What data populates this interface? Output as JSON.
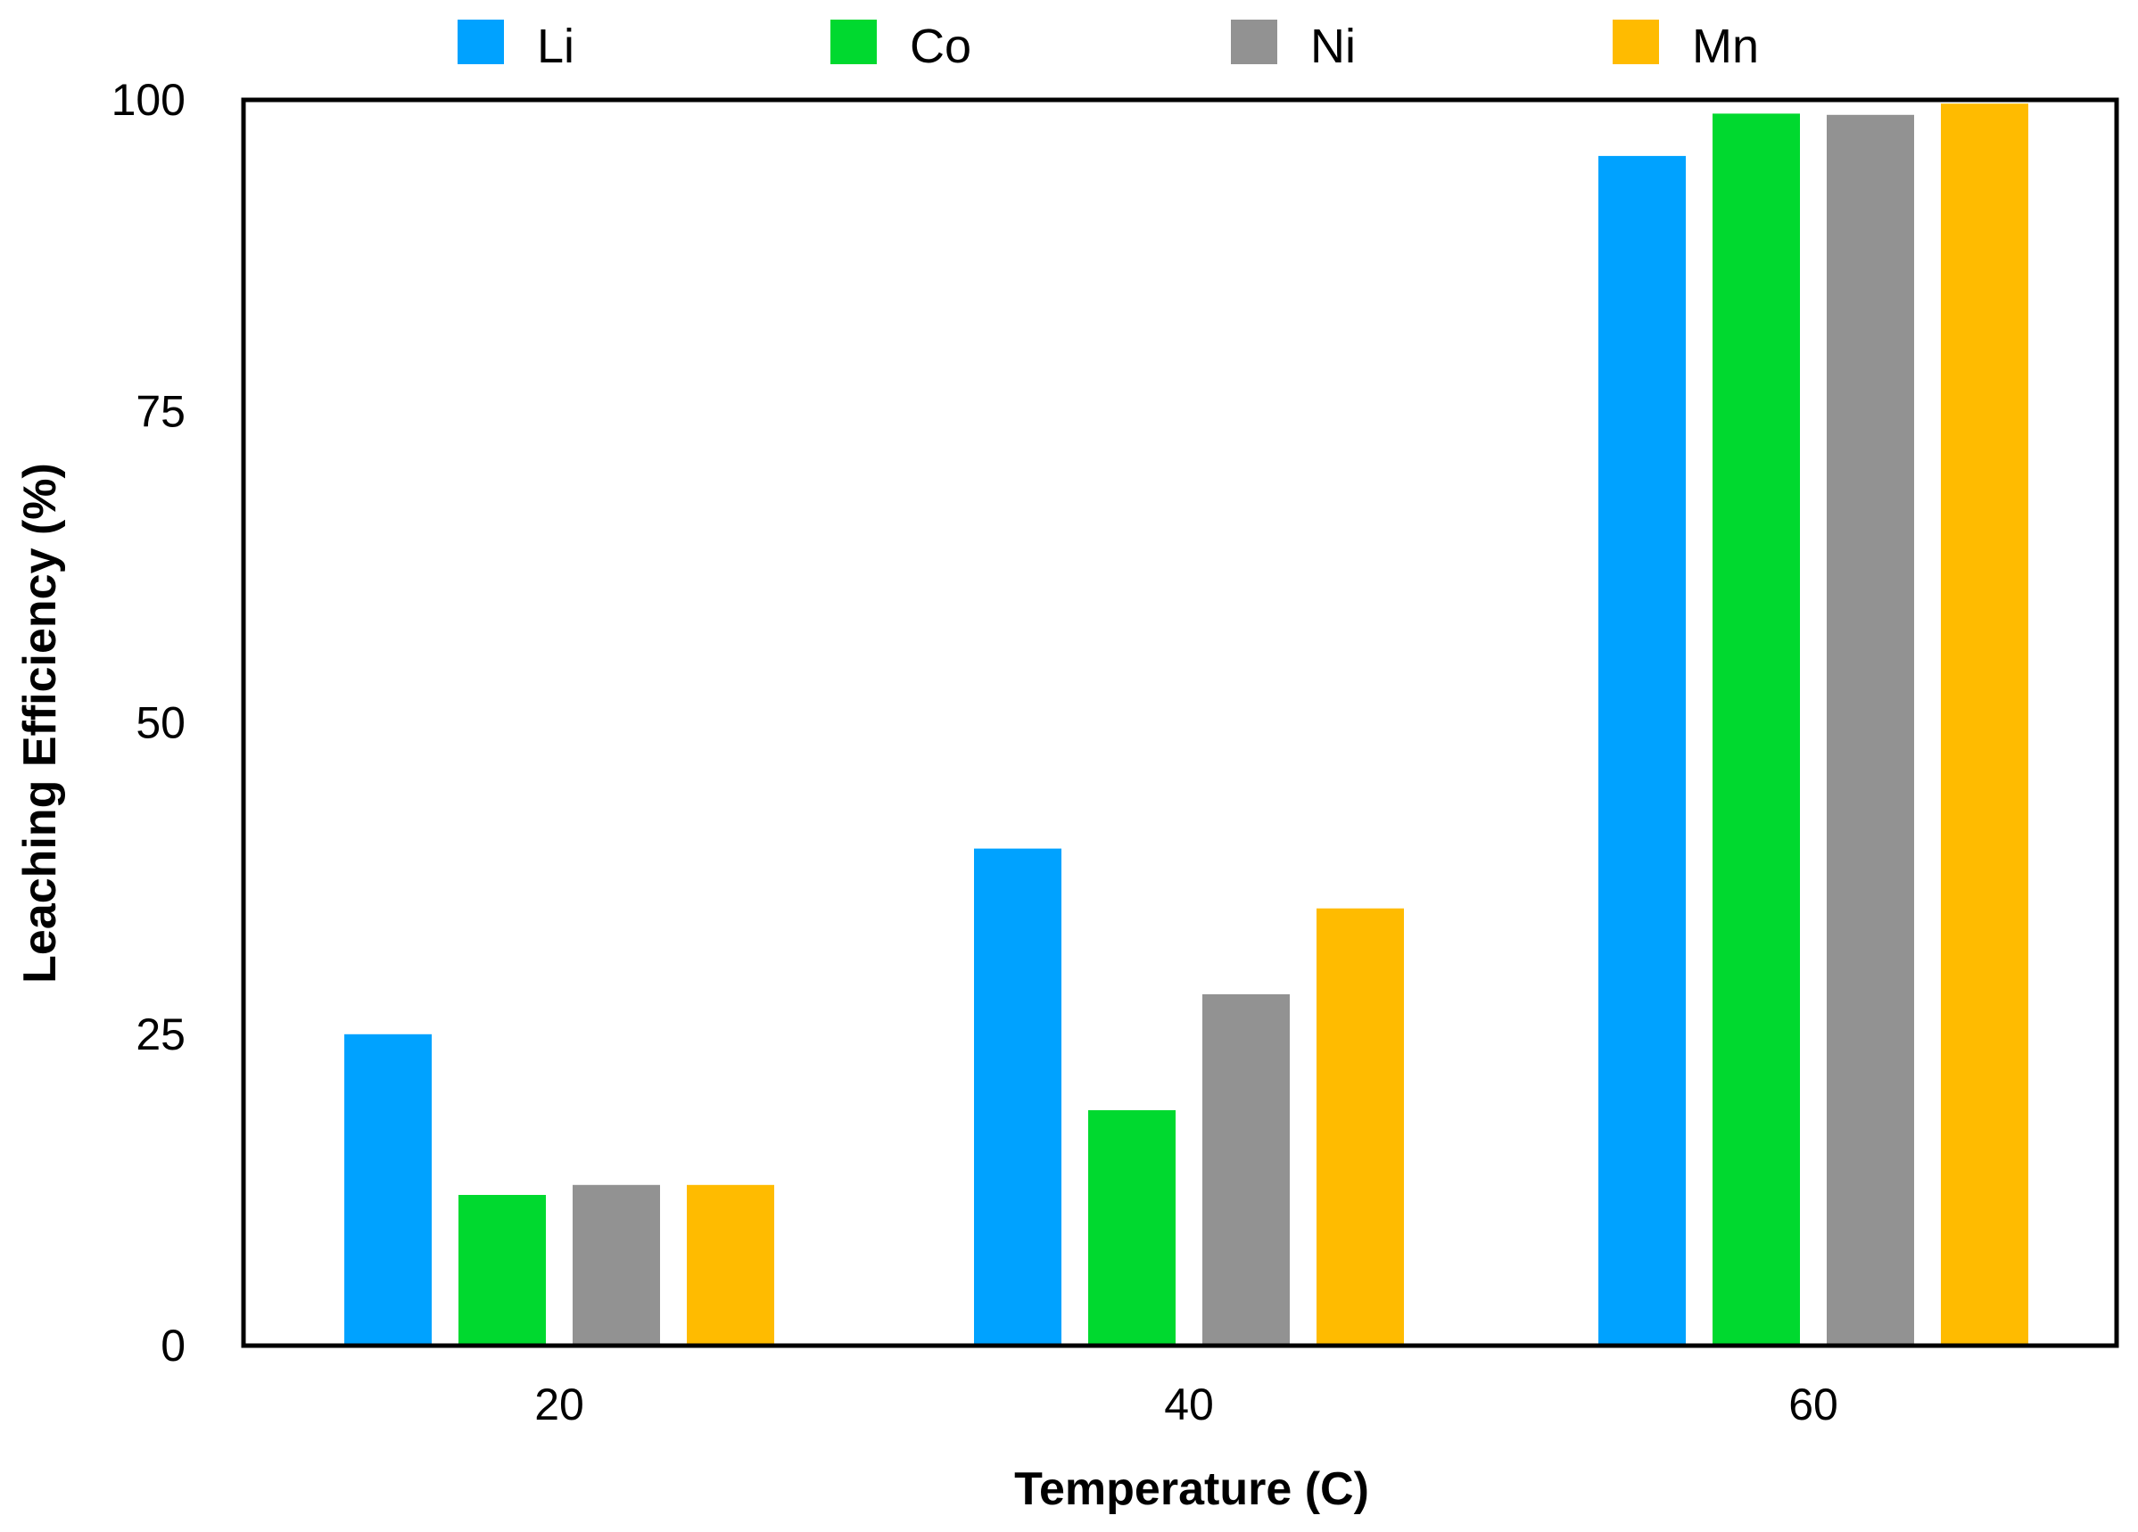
{
  "chart_data": {
    "type": "bar",
    "title": "",
    "xlabel": "Temperature (C)",
    "ylabel": "Leaching Efficiency (%)",
    "categories": [
      "20",
      "40",
      "60"
    ],
    "ylim": [
      0,
      100
    ],
    "yticks": [
      "0",
      "25",
      "50",
      "75",
      "100"
    ],
    "grid": false,
    "legend_position": "top",
    "series": [
      {
        "name": "Li",
        "color": "#00A2FF",
        "values": [
          25,
          39.9,
          95.5
        ]
      },
      {
        "name": "Co",
        "color": "#00D92F",
        "values": [
          12.1,
          18.9,
          98.9
        ]
      },
      {
        "name": "Ni",
        "color": "#929292",
        "values": [
          12.9,
          28.2,
          98.8
        ]
      },
      {
        "name": "Mn",
        "color": "#FFBB00",
        "values": [
          12.9,
          35.1,
          99.7
        ]
      }
    ]
  }
}
